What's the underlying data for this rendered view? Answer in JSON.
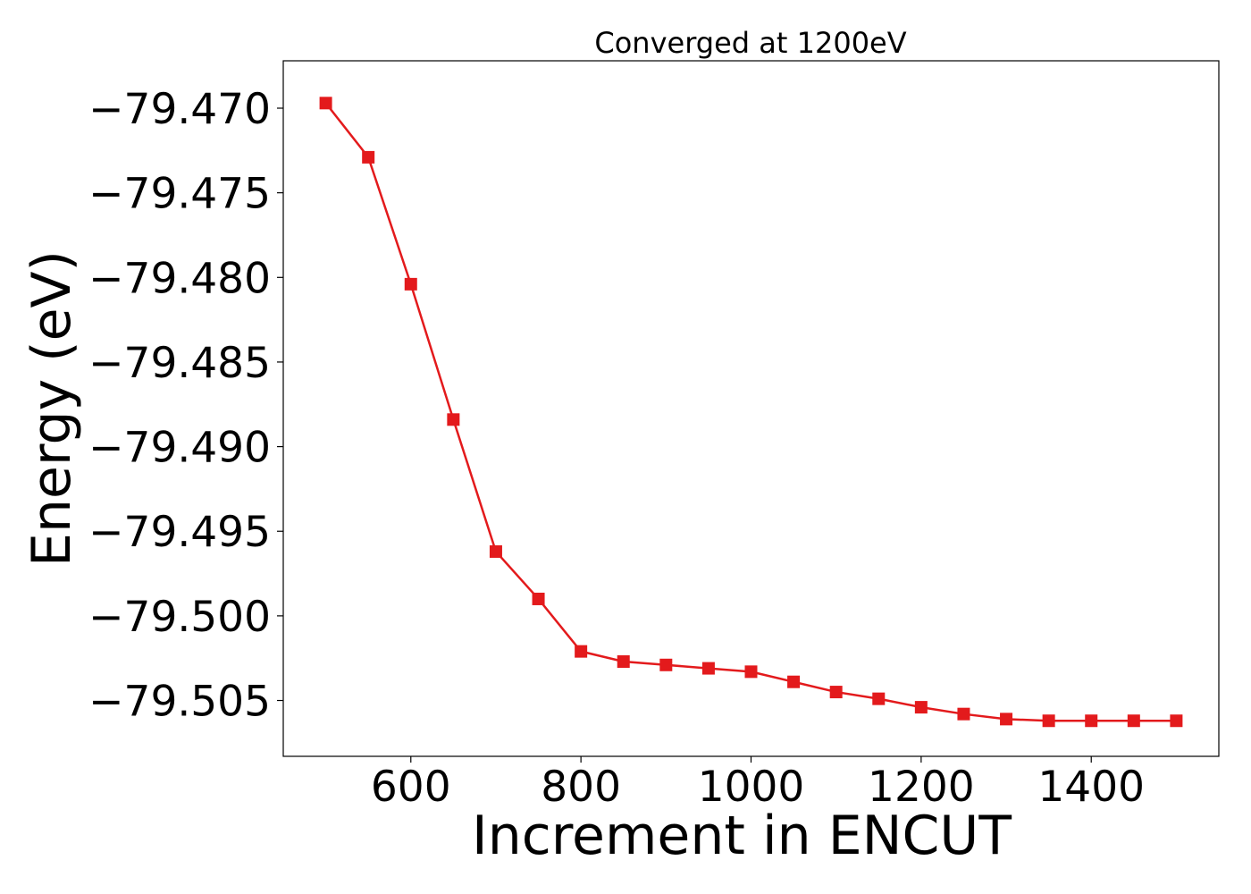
{
  "chart_data": {
    "type": "line",
    "title": "Converged at 1200eV",
    "xlabel": "Increment in ENCUT",
    "ylabel": "Energy (eV)",
    "xlim": [
      450,
      1550
    ],
    "ylim": [
      -79.5083,
      -79.4672
    ],
    "grid": false,
    "legend": "none",
    "x_ticks": [
      {
        "value": 600,
        "label": "600"
      },
      {
        "value": 800,
        "label": "800"
      },
      {
        "value": 1000,
        "label": "1000"
      },
      {
        "value": 1200,
        "label": "1200"
      },
      {
        "value": 1400,
        "label": "1400"
      }
    ],
    "y_ticks": [
      {
        "value": -79.47,
        "label": "−79.470"
      },
      {
        "value": -79.475,
        "label": "−79.475"
      },
      {
        "value": -79.48,
        "label": "−79.480"
      },
      {
        "value": -79.485,
        "label": "−79.485"
      },
      {
        "value": -79.49,
        "label": "−79.490"
      },
      {
        "value": -79.495,
        "label": "−79.495"
      },
      {
        "value": -79.5,
        "label": "−79.500"
      },
      {
        "value": -79.505,
        "label": "−79.505"
      }
    ],
    "series": [
      {
        "color": "#e31a1c",
        "marker": "square",
        "x": [
          500,
          550,
          600,
          650,
          700,
          750,
          800,
          850,
          900,
          950,
          1000,
          1050,
          1100,
          1150,
          1200,
          1250,
          1300,
          1350,
          1400,
          1450,
          1500
        ],
        "y": [
          -79.4697,
          -79.4729,
          -79.4804,
          -79.4884,
          -79.4962,
          -79.499,
          -79.5021,
          -79.5027,
          -79.5029,
          -79.5031,
          -79.5033,
          -79.5039,
          -79.5045,
          -79.5049,
          -79.5054,
          -79.5058,
          -79.5061,
          -79.5062,
          -79.5062,
          -79.5062,
          -79.5062
        ]
      }
    ]
  }
}
